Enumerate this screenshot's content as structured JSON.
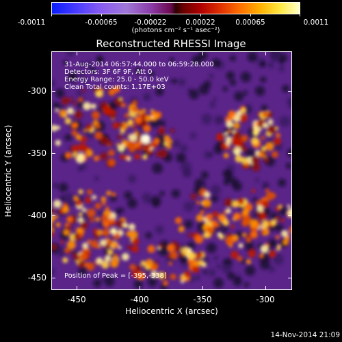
{
  "colorbar": {
    "tick_labels": [
      "-0.0011",
      "-0.00065",
      "-0.00022",
      "0.00022",
      "0.00065",
      "0.0011"
    ],
    "units": "(photons cm⁻² s⁻¹ asec⁻²)"
  },
  "title": "Reconstructed RHESSI Image",
  "info": {
    "time_range": "31-Aug-2014 06:57:44.000 to 06:59:28.000",
    "detectors": "Detectors: 3F 6F 9F, Att 0",
    "energy": "Energy Range: 25.0 - 50.0 keV",
    "clean": "Clean     Total counts: 1.17E+03",
    "peak": "Position of Peak = [-395,-338]"
  },
  "axes": {
    "x_label": "Heliocentric X (arcsec)",
    "y_label": "Heliocentric Y (arcsec)",
    "x_ticks": [
      "-450",
      "-400",
      "-350",
      "-300"
    ],
    "y_ticks": [
      "-300",
      "-350",
      "-400",
      "-450"
    ],
    "xlim": [
      -470,
      -278
    ],
    "ylim": [
      -463,
      -272
    ]
  },
  "timestamp": "14-Nov-2014 21:09",
  "colors": {
    "background": "#000000",
    "image_base": "#5a2488"
  }
}
